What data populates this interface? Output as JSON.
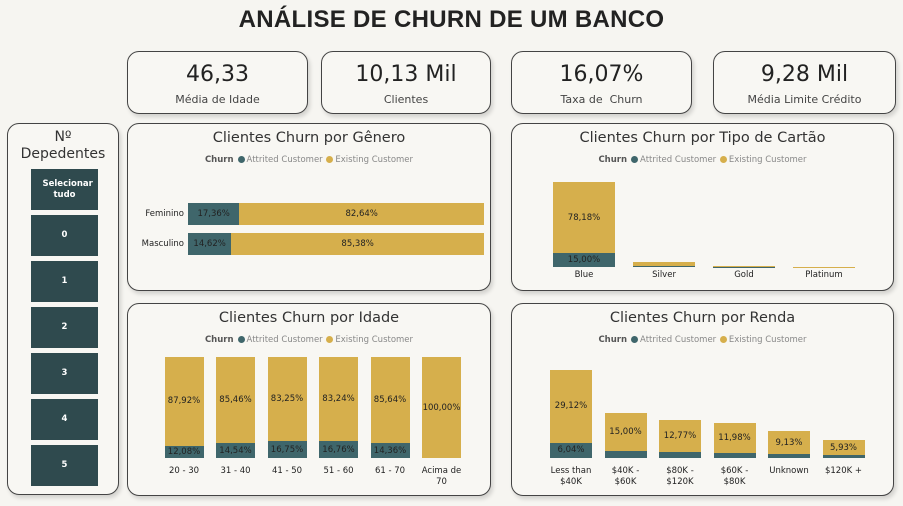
{
  "title": "ANÁLISE DE CHURN DE UM BANCO",
  "colors": {
    "attrited": "#3f666b",
    "existing": "#d6af4c",
    "slicer": "#2f4a4e"
  },
  "kpis": [
    {
      "value": "46,33",
      "label": "Média de Idade"
    },
    {
      "value": "10,13 Mil",
      "label": "Clientes"
    },
    {
      "value": "16,07%",
      "label": "Taxa de  Churn"
    },
    {
      "value": "9,28 Mil",
      "label": "Média Limite Crédito"
    }
  ],
  "slicer": {
    "title_line1": "Nº",
    "title_line2": "Depedentes",
    "items": [
      "Selecionar tudo",
      "0",
      "1",
      "2",
      "3",
      "4",
      "5"
    ]
  },
  "legend": {
    "title": "Churn",
    "attrited": "Attrited Customer",
    "existing": "Existing Customer"
  },
  "chart_data": [
    {
      "type": "bar",
      "orientation": "horizontal",
      "stacked": "100%",
      "title": "Clientes Churn por Gênero",
      "categories": [
        "Feminino",
        "Masculino"
      ],
      "series": [
        {
          "name": "Attrited Customer",
          "values": [
            17.36,
            14.62
          ],
          "labels": [
            "17,36%",
            "14,62%"
          ]
        },
        {
          "name": "Existing Customer",
          "values": [
            82.64,
            85.38
          ],
          "labels": [
            "82,64%",
            "85,38%"
          ]
        }
      ],
      "legend": "top"
    },
    {
      "type": "bar",
      "stacked": true,
      "title": "Clientes Churn por Tipo de Cartão",
      "categories": [
        "Blue",
        "Silver",
        "Gold",
        "Platinum"
      ],
      "series": [
        {
          "name": "Attrited Customer",
          "values": [
            15.0,
            0.9,
            0.1,
            0.0
          ],
          "labels": [
            "15,00%",
            "",
            "",
            ""
          ]
        },
        {
          "name": "Existing Customer",
          "values": [
            78.18,
            4.6,
            1.0,
            0.2
          ],
          "labels": [
            "78,18%",
            "",
            "",
            ""
          ]
        }
      ],
      "ylim": [
        0,
        93.18
      ],
      "legend": "top"
    },
    {
      "type": "bar",
      "stacked": "100%",
      "title": "Clientes Churn por Idade",
      "categories": [
        "20 - 30",
        "31 - 40",
        "41 - 50",
        "51 - 60",
        "61 - 70",
        "Acima de 70"
      ],
      "series": [
        {
          "name": "Attrited Customer",
          "values": [
            12.08,
            14.54,
            16.75,
            16.76,
            14.36,
            0
          ],
          "labels": [
            "12,08%",
            "14,54%",
            "16,75%",
            "16,76%",
            "14,36%",
            ""
          ]
        },
        {
          "name": "Existing Customer",
          "values": [
            87.92,
            85.46,
            83.25,
            83.24,
            85.64,
            100.0
          ],
          "labels": [
            "87,92%",
            "85,46%",
            "83,25%",
            "83,24%",
            "85,64%",
            "100,00%"
          ]
        }
      ],
      "legend": "top"
    },
    {
      "type": "bar",
      "stacked": true,
      "title": "Clientes Churn por Renda",
      "categories": [
        "Less than $40K",
        "$40K - $60K",
        "$80K - $120K",
        "$60K - $80K",
        "Unknown",
        "$120K +"
      ],
      "series": [
        {
          "name": "Attrited Customer",
          "values": [
            6.04,
            2.9,
            2.4,
            1.9,
            1.6,
            1.2
          ],
          "labels": [
            "6,04%",
            "",
            "",
            "",
            "",
            ""
          ]
        },
        {
          "name": "Existing Customer",
          "values": [
            29.12,
            15.0,
            12.77,
            11.98,
            9.13,
            5.93
          ],
          "labels": [
            "29,12%",
            "15,00%",
            "12,77%",
            "11,98%",
            "9,13%",
            "5,93%"
          ]
        }
      ],
      "ylim": [
        0,
        35.16
      ],
      "legend": "top"
    }
  ]
}
